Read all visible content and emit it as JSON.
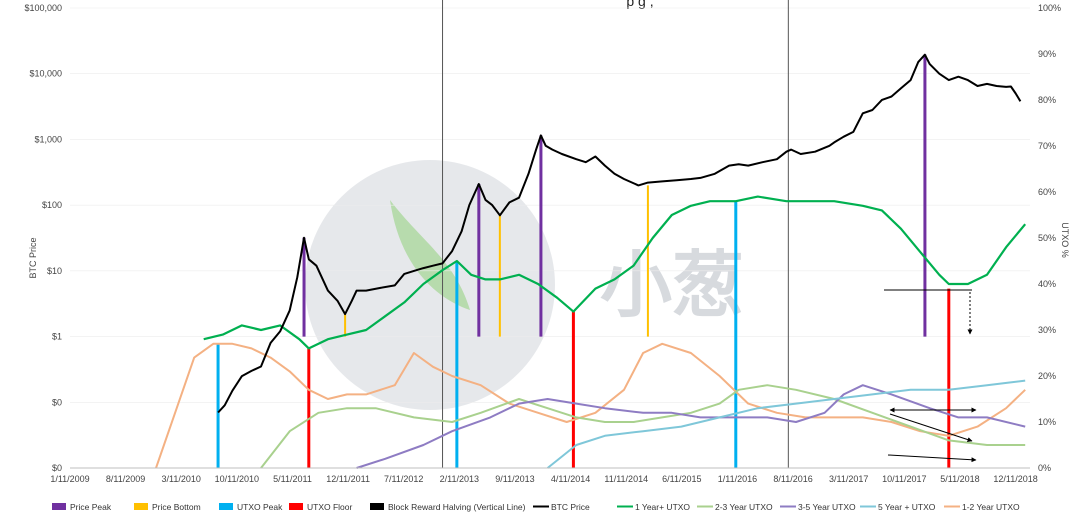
{
  "chart_data": {
    "type": "line",
    "title": "p       g   ,",
    "watermark_text": "小葱",
    "x_axis": {
      "ticks": [
        "1/11/2009",
        "8/11/2009",
        "3/11/2010",
        "10/11/2010",
        "5/11/2011",
        "12/11/2011",
        "7/11/2012",
        "2/11/2013",
        "9/11/2013",
        "4/11/2014",
        "11/11/2014",
        "6/11/2015",
        "1/11/2016",
        "8/11/2016",
        "3/11/2017",
        "10/11/2017",
        "5/11/2018",
        "12/11/2018"
      ],
      "range": [
        2009.0,
        2019.05
      ]
    },
    "y_left": {
      "label": "BTC Price",
      "scale": "log",
      "ticks": [
        "$0",
        "$0",
        "$1",
        "$10",
        "$100",
        "$1,000",
        "$10,000",
        "$100,000"
      ]
    },
    "y_right": {
      "label": "UTXO %",
      "range": [
        0,
        100
      ],
      "ticks": [
        "0%",
        "10%",
        "20%",
        "30%",
        "40%",
        "50%",
        "60%",
        "70%",
        "80%",
        "90%",
        "100%"
      ]
    },
    "colors": {
      "price": "#000000",
      "price_peak": "#7030a0",
      "price_bottom": "#ffc000",
      "utxo_peak": "#00b0f0",
      "utxo_floor": "#ff0000",
      "halving": "#000000",
      "utxo_1y": "#00b050",
      "utxo_2_3y": "#a9d18e",
      "utxo_3_5y": "#8e7cc3",
      "utxo_5y": "#7fc7d9",
      "utxo_1_2y": "#f4b183"
    },
    "legend": [
      {
        "label": "Price Peak",
        "key": "price_peak",
        "kind": "swatch"
      },
      {
        "label": "Price Bottom",
        "key": "price_bottom",
        "kind": "swatch"
      },
      {
        "label": "UTXO Peak",
        "key": "utxo_peak",
        "kind": "swatch"
      },
      {
        "label": "UTXO Floor",
        "key": "utxo_floor",
        "kind": "swatch"
      },
      {
        "label": "Block Reward Halving (Vertical Line)",
        "key": "halving",
        "kind": "swatch"
      },
      {
        "label": "BTC Price",
        "key": "price",
        "kind": "line"
      },
      {
        "label": "1 Year+ UTXO",
        "key": "utxo_1y",
        "kind": "line"
      },
      {
        "label": "2-3 Year UTXO",
        "key": "utxo_2_3y",
        "kind": "line"
      },
      {
        "label": "3-5 Year UTXO",
        "key": "utxo_3_5y",
        "kind": "line"
      },
      {
        "label": "5 Year + UTXO",
        "key": "utxo_5y",
        "kind": "line"
      },
      {
        "label": "1-2 Year UTXO",
        "key": "utxo_1_2y",
        "kind": "line"
      }
    ],
    "halvings": [
      2012.9,
      2016.52
    ],
    "markers": [
      {
        "type": "price_peak",
        "x": 2011.45,
        "from": 1,
        "to": 32
      },
      {
        "type": "price_peak",
        "x": 2013.28,
        "from": 1,
        "to": 210
      },
      {
        "type": "price_peak",
        "x": 2013.93,
        "from": 1,
        "to": 1150
      },
      {
        "type": "price_peak",
        "x": 2017.95,
        "from": 1,
        "to": 19500
      },
      {
        "type": "price_bottom",
        "x": 2011.88,
        "from": 1,
        "to": 2.2
      },
      {
        "type": "price_bottom",
        "x": 2013.5,
        "from": 1,
        "to": 70
      },
      {
        "type": "price_bottom",
        "x": 2015.05,
        "from": 1,
        "to": 200
      },
      {
        "type": "utxo_peak",
        "x": 2010.55,
        "from": 0,
        "to": 27
      },
      {
        "type": "utxo_peak",
        "x": 2013.05,
        "from": 0,
        "to": 45
      },
      {
        "type": "utxo_peak",
        "x": 2015.97,
        "from": 0,
        "to": 58
      },
      {
        "type": "utxo_floor",
        "x": 2011.5,
        "from": 0,
        "to": 26
      },
      {
        "type": "utxo_floor",
        "x": 2014.27,
        "from": 0,
        "to": 34
      },
      {
        "type": "utxo_floor",
        "x": 2018.2,
        "from": 0,
        "to": 39
      }
    ],
    "price": {
      "x": [
        2010.55,
        2010.62,
        2010.7,
        2010.8,
        2010.9,
        2011.0,
        2011.1,
        2011.2,
        2011.3,
        2011.38,
        2011.45,
        2011.5,
        2011.58,
        2011.7,
        2011.8,
        2011.88,
        2011.95,
        2012.0,
        2012.1,
        2012.25,
        2012.4,
        2012.5,
        2012.6,
        2012.7,
        2012.8,
        2012.9,
        2013.0,
        2013.1,
        2013.18,
        2013.28,
        2013.35,
        2013.42,
        2013.5,
        2013.6,
        2013.7,
        2013.8,
        2013.88,
        2013.93,
        2013.98,
        2014.05,
        2014.15,
        2014.3,
        2014.4,
        2014.5,
        2014.6,
        2014.7,
        2014.8,
        2014.95,
        2015.05,
        2015.2,
        2015.35,
        2015.5,
        2015.6,
        2015.75,
        2015.9,
        2016.0,
        2016.1,
        2016.25,
        2016.4,
        2016.5,
        2016.55,
        2016.65,
        2016.8,
        2016.95,
        2017.0,
        2017.1,
        2017.2,
        2017.3,
        2017.4,
        2017.5,
        2017.6,
        2017.7,
        2017.8,
        2017.88,
        2017.95,
        2018.0,
        2018.1,
        2018.2,
        2018.3,
        2018.4,
        2018.5,
        2018.6,
        2018.7,
        2018.8,
        2018.85,
        2018.9,
        2018.95
      ],
      "y": [
        0.07,
        0.09,
        0.15,
        0.25,
        0.3,
        0.35,
        0.8,
        1.2,
        2.5,
        8,
        32,
        15,
        12,
        5,
        3.5,
        2.2,
        3.5,
        5,
        5,
        5.5,
        6,
        9,
        10,
        11,
        12,
        13,
        20,
        40,
        100,
        210,
        120,
        100,
        70,
        110,
        130,
        300,
        700,
        1150,
        800,
        700,
        600,
        500,
        450,
        550,
        400,
        300,
        250,
        200,
        220,
        230,
        240,
        250,
        260,
        300,
        400,
        420,
        400,
        450,
        500,
        650,
        700,
        600,
        650,
        800,
        900,
        1100,
        1300,
        2500,
        2800,
        4000,
        4500,
        6000,
        8000,
        15000,
        19500,
        14000,
        10000,
        8000,
        9000,
        8000,
        6500,
        7000,
        6500,
        6300,
        6400,
        5000,
        3800
      ]
    },
    "utxo_1y": {
      "x": [
        2010.4,
        2010.6,
        2010.8,
        2011.0,
        2011.2,
        2011.4,
        2011.5,
        2011.7,
        2011.9,
        2012.1,
        2012.3,
        2012.5,
        2012.7,
        2012.9,
        2013.05,
        2013.2,
        2013.35,
        2013.5,
        2013.7,
        2013.9,
        2014.1,
        2014.27,
        2014.5,
        2014.7,
        2014.9,
        2015.1,
        2015.3,
        2015.5,
        2015.7,
        2015.97,
        2016.2,
        2016.5,
        2016.8,
        2017.0,
        2017.3,
        2017.5,
        2017.7,
        2017.9,
        2018.1,
        2018.2,
        2018.4,
        2018.6,
        2018.8,
        2019.0
      ],
      "y": [
        28,
        29,
        31,
        30,
        31,
        28,
        26,
        28,
        29,
        30,
        33,
        36,
        40,
        43,
        45,
        42,
        41,
        41,
        42,
        40,
        37,
        34,
        39,
        41,
        44,
        50,
        55,
        57,
        58,
        58,
        59,
        58,
        58,
        58,
        57,
        56,
        52,
        47,
        42,
        40,
        40,
        42,
        48,
        53
      ]
    },
    "utxo_2_3y": {
      "x": [
        2011.0,
        2011.3,
        2011.6,
        2011.9,
        2012.2,
        2012.6,
        2013.0,
        2013.3,
        2013.7,
        2014.0,
        2014.3,
        2014.6,
        2014.9,
        2015.2,
        2015.5,
        2015.8,
        2016.0,
        2016.3,
        2016.6,
        2017.0,
        2017.4,
        2017.8,
        2018.2,
        2018.6,
        2019.0
      ],
      "y": [
        0,
        8,
        12,
        13,
        13,
        11,
        10,
        12,
        15,
        13,
        11,
        10,
        10,
        11,
        12,
        14,
        17,
        18,
        17,
        15,
        12,
        9,
        6,
        5,
        5
      ]
    },
    "utxo_3_5y": {
      "x": [
        2012.0,
        2012.3,
        2012.7,
        2013.0,
        2013.4,
        2013.7,
        2014.0,
        2014.3,
        2014.6,
        2015.0,
        2015.3,
        2015.6,
        2016.0,
        2016.3,
        2016.6,
        2016.9,
        2017.1,
        2017.3,
        2017.6,
        2018.0,
        2018.3,
        2018.6,
        2019.0
      ],
      "y": [
        0,
        2,
        5,
        8,
        11,
        14,
        15,
        14,
        13,
        12,
        12,
        11,
        11,
        11,
        10,
        12,
        16,
        18,
        16,
        13,
        11,
        11,
        9
      ]
    },
    "utxo_5y": {
      "x": [
        2014.0,
        2014.3,
        2014.6,
        2015.0,
        2015.4,
        2015.8,
        2016.2,
        2016.6,
        2017.0,
        2017.4,
        2017.8,
        2018.2,
        2018.6,
        2019.0
      ],
      "y": [
        0,
        5,
        7,
        8,
        9,
        11,
        13,
        14,
        15,
        16,
        17,
        17,
        18,
        19
      ]
    },
    "utxo_1_2y": {
      "x": [
        2009.9,
        2010.1,
        2010.3,
        2010.5,
        2010.7,
        2010.9,
        2011.1,
        2011.3,
        2011.5,
        2011.7,
        2011.9,
        2012.1,
        2012.4,
        2012.6,
        2012.8,
        2013.0,
        2013.3,
        2013.6,
        2013.9,
        2014.2,
        2014.5,
        2014.8,
        2015.0,
        2015.2,
        2015.5,
        2015.8,
        2016.1,
        2016.4,
        2016.7,
        2017.0,
        2017.3,
        2017.6,
        2017.9,
        2018.2,
        2018.5,
        2018.8,
        2019.0
      ],
      "y": [
        0,
        12,
        24,
        27,
        27,
        26,
        24,
        21,
        17,
        15,
        16,
        16,
        18,
        25,
        22,
        20,
        18,
        14,
        12,
        10,
        12,
        17,
        25,
        27,
        25,
        20,
        14,
        12,
        11,
        11,
        11,
        10,
        8,
        7,
        9,
        13,
        17
      ]
    }
  }
}
